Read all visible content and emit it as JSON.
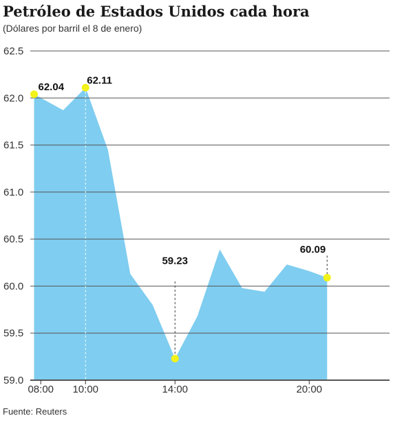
{
  "title": "Petróleo de Estados Unidos cada hora",
  "subtitle": "(Dólares por barril el 8 de enero)",
  "source": "Fuente: Reuters",
  "colors": {
    "area": "#7fcdf0",
    "grid": "#555555",
    "highlight": "#f3f21a",
    "axis": "#333333"
  },
  "watermark": "eagle-watermark-icon",
  "chart_data": {
    "type": "area",
    "title": "Petróleo de Estados Unidos cada hora",
    "subtitle": "(Dólares por barril el 8 de enero)",
    "xlabel": "",
    "ylabel": "",
    "x_unit": "hour",
    "xlim": [
      7.5,
      21
    ],
    "ylim": [
      59.0,
      62.5
    ],
    "y_ticks": [
      "59.0",
      "59.5",
      "60.0",
      "60.5",
      "61.0",
      "61.5",
      "62.0",
      "62.5"
    ],
    "x_ticks": [
      {
        "x": 8,
        "label": "08:00"
      },
      {
        "x": 10,
        "label": "10:00"
      },
      {
        "x": 14,
        "label": "14:00"
      },
      {
        "x": 20,
        "label": "20:00"
      }
    ],
    "grid": true,
    "series": [
      {
        "x": [
          7.7,
          9,
          10,
          11,
          12,
          13,
          14,
          15,
          16,
          17,
          18,
          19,
          20,
          20.8
        ],
        "values": [
          62.04,
          61.87,
          62.11,
          61.45,
          60.13,
          59.8,
          59.23,
          59.68,
          60.39,
          59.98,
          59.94,
          60.23,
          60.16,
          60.09
        ]
      }
    ],
    "annotations": [
      {
        "x": 7.7,
        "value": 62.04,
        "label": "62.04"
      },
      {
        "x": 10,
        "value": 62.11,
        "label": "62.11"
      },
      {
        "x": 14,
        "value": 59.23,
        "label": "59.23"
      },
      {
        "x": 20.8,
        "value": 60.09,
        "label": "60.09"
      }
    ]
  }
}
